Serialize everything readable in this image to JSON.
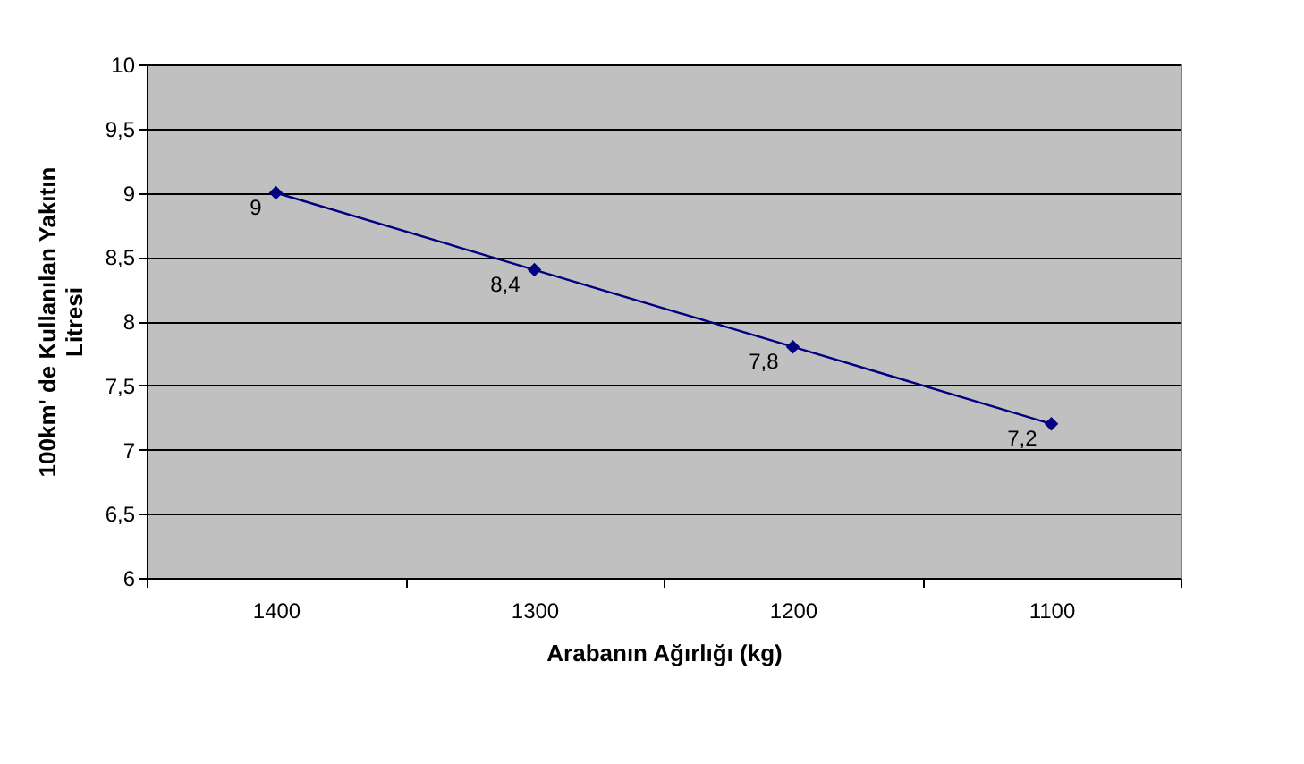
{
  "chart_data": {
    "type": "line",
    "xlabel": "Arabanın Ağırlığı (kg)",
    "ylabel": "100km' de Kullanılan Yakıtın Litresi",
    "categories": [
      "1400",
      "1300",
      "1200",
      "1100"
    ],
    "series": [
      {
        "color": "#000080",
        "values": [
          9,
          8.4,
          7.8,
          7.2
        ],
        "value_labels": [
          "9",
          "8,4",
          "7,8",
          "7,2"
        ]
      }
    ],
    "ylim": [
      6,
      10
    ],
    "yticks": [
      6,
      {
        "value": 6.5,
        "label": "6,5"
      },
      7,
      {
        "value": 7.5,
        "label": "7,5"
      },
      8,
      {
        "value": 8.5,
        "label": "8,5"
      },
      9,
      {
        "value": 9.5,
        "label": "9,5"
      },
      10
    ],
    "grid": "y",
    "marker": "diamond",
    "line_style": "solid",
    "legend": false
  }
}
